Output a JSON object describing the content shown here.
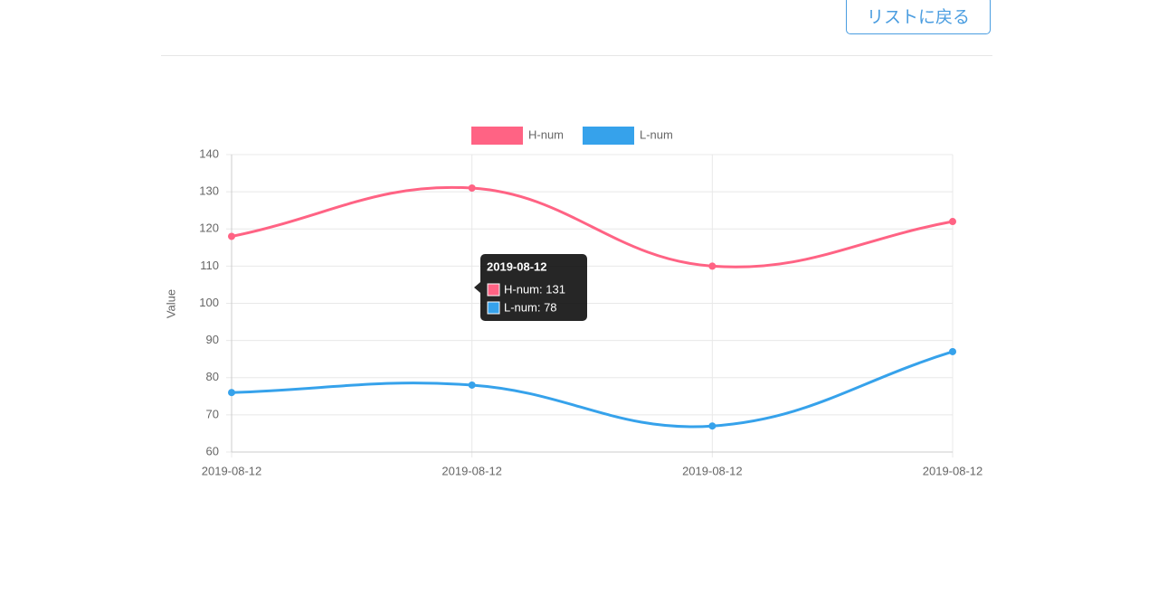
{
  "button": {
    "label": "リストに戻る"
  },
  "chart_data": {
    "type": "line",
    "y_label": "Value",
    "categories": [
      "2019-08-12",
      "2019-08-12",
      "2019-08-12",
      "2019-08-12"
    ],
    "series": [
      {
        "name": "H-num",
        "color": "#ff6384",
        "values": [
          118,
          131,
          110,
          122
        ]
      },
      {
        "name": "L-num",
        "color": "#36a2eb",
        "values": [
          76,
          78,
          67,
          87
        ]
      }
    ],
    "ylim": [
      60,
      140
    ],
    "yticks": [
      60,
      70,
      80,
      90,
      100,
      110,
      120,
      130,
      140
    ],
    "grid": true,
    "legend": "top",
    "tooltip": {
      "title": "2019-08-12",
      "lines": [
        "H-num: 131",
        "L-num: 78"
      ]
    }
  }
}
